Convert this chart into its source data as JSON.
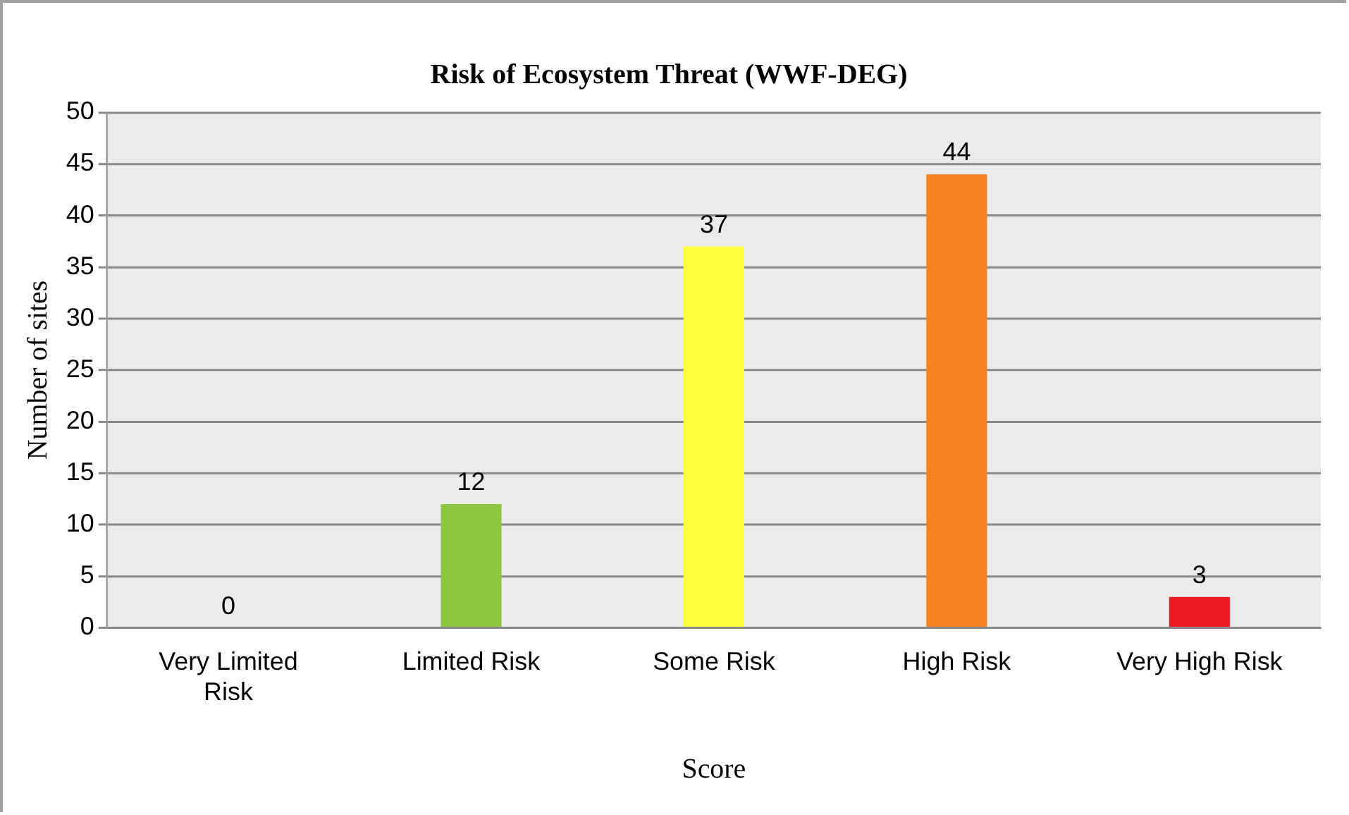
{
  "chart_data": {
    "type": "bar",
    "title": "Risk of Ecosystem Threat (WWF-DEG)",
    "xlabel": "Score",
    "ylabel": "Number of sites",
    "categories": [
      "Very Limited Risk",
      "Limited Risk",
      "Some Risk",
      "High Risk",
      "Very High Risk"
    ],
    "values": [
      0,
      12,
      37,
      44,
      3
    ],
    "colors": [
      "#8dc63f",
      "#8dc63f",
      "#ffff40",
      "#f58220",
      "#ed1c24"
    ],
    "ylim": [
      0,
      50
    ],
    "yticks": [
      0,
      5,
      10,
      15,
      20,
      25,
      30,
      35,
      40,
      45,
      50
    ],
    "grid": "y",
    "data_labels": true,
    "legend": false
  }
}
